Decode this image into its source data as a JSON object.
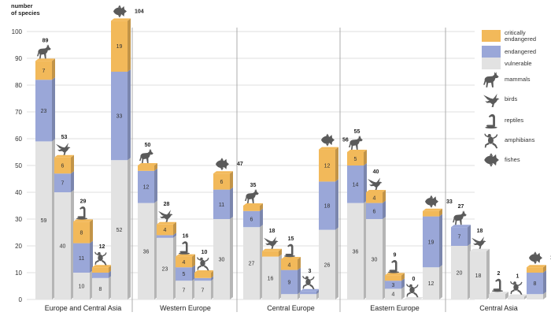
{
  "colors": {
    "critically_endangered": "#f2b95a",
    "endangered": "#9aa7d8",
    "vulnerable": "#e2e2e2",
    "icon": "#5a5a5a",
    "grid": "#d4d4d4"
  },
  "chart_data": {
    "type": "bar",
    "ylabel": "number\nof species",
    "ylim": [
      0,
      100
    ],
    "yticks": [
      0,
      10,
      20,
      30,
      40,
      50,
      60,
      70,
      80,
      90,
      100
    ],
    "stack_order": [
      "vulnerable",
      "endangered",
      "critically_endangered"
    ],
    "groups": [
      {
        "region": "Europe and Central Asia",
        "bars": [
          {
            "taxon": "mammals",
            "icon": "wolf-icon",
            "vulnerable": 59,
            "endangered": 23,
            "critically_endangered": 7,
            "total": 89
          },
          {
            "taxon": "birds",
            "icon": "bird-icon",
            "vulnerable": 40,
            "endangered": 7,
            "critically_endangered": 6,
            "total": 53
          },
          {
            "taxon": "reptiles",
            "icon": "snake-icon",
            "vulnerable": 10,
            "endangered": 11,
            "critically_endangered": 8,
            "total": 29
          },
          {
            "taxon": "amphibians",
            "icon": "frog-icon",
            "vulnerable": 8,
            "endangered": 2,
            "critically_endangered": 2,
            "total": 12
          },
          {
            "taxon": "fishes",
            "icon": "fish-icon",
            "vulnerable": 52,
            "endangered": 33,
            "critically_endangered": 19,
            "total": 104
          }
        ]
      },
      {
        "region": "Western Europe",
        "bars": [
          {
            "taxon": "mammals",
            "icon": "wolf-icon",
            "vulnerable": 36,
            "endangered": 12,
            "critically_endangered": 2,
            "total": 50
          },
          {
            "taxon": "birds",
            "icon": "bird-icon",
            "vulnerable": 23,
            "endangered": 1,
            "critically_endangered": 4,
            "total": 28
          },
          {
            "taxon": "reptiles",
            "icon": "snake-icon",
            "vulnerable": 7,
            "endangered": 5,
            "critically_endangered": 4,
            "total": 16
          },
          {
            "taxon": "amphibians",
            "icon": "frog-icon",
            "vulnerable": 7,
            "endangered": 1,
            "critically_endangered": 2,
            "total": 10
          },
          {
            "taxon": "fishes",
            "icon": "fish-icon",
            "vulnerable": 30,
            "endangered": 11,
            "critically_endangered": 6,
            "total": 47
          }
        ]
      },
      {
        "region": "Central Europe",
        "bars": [
          {
            "taxon": "mammals",
            "icon": "wolf-icon",
            "vulnerable": 27,
            "endangered": 6,
            "critically_endangered": 2,
            "total": 35
          },
          {
            "taxon": "birds",
            "icon": "bird-icon",
            "vulnerable": 16,
            "endangered": 0,
            "critically_endangered": 2,
            "total": 18
          },
          {
            "taxon": "reptiles",
            "icon": "snake-icon",
            "vulnerable": 2,
            "endangered": 9,
            "critically_endangered": 4,
            "total": 15
          },
          {
            "taxon": "amphibians",
            "icon": "frog-icon",
            "vulnerable": 2,
            "endangered": 1,
            "critically_endangered": 0,
            "total": 3
          },
          {
            "taxon": "fishes",
            "icon": "fish-icon",
            "vulnerable": 26,
            "endangered": 18,
            "critically_endangered": 12,
            "total": 56
          }
        ]
      },
      {
        "region": "Eastern Europe",
        "bars": [
          {
            "taxon": "mammals",
            "icon": "wolf-icon",
            "vulnerable": 36,
            "endangered": 14,
            "critically_endangered": 5,
            "total": 55
          },
          {
            "taxon": "birds",
            "icon": "bird-icon",
            "vulnerable": 30,
            "endangered": 6,
            "critically_endangered": 4,
            "total": 40
          },
          {
            "taxon": "reptiles",
            "icon": "snake-icon",
            "vulnerable": 4,
            "endangered": 3,
            "critically_endangered": 2,
            "total": 9
          },
          {
            "taxon": "amphibians",
            "icon": "frog-icon",
            "vulnerable": 0,
            "endangered": 0,
            "critically_endangered": 0,
            "total": 0
          },
          {
            "taxon": "fishes",
            "icon": "fish-icon",
            "vulnerable": 12,
            "endangered": 19,
            "critically_endangered": 2,
            "total": 33
          }
        ]
      },
      {
        "region": "Central Asia",
        "bars": [
          {
            "taxon": "mammals",
            "icon": "wolf-icon",
            "vulnerable": 20,
            "endangered": 7,
            "critically_endangered": 0,
            "total": 27
          },
          {
            "taxon": "birds",
            "icon": "bird-icon",
            "vulnerable": 18,
            "endangered": 0,
            "critically_endangered": 0,
            "total": 18
          },
          {
            "taxon": "reptiles",
            "icon": "snake-icon",
            "vulnerable": 2,
            "endangered": 0,
            "critically_endangered": 0,
            "total": 2
          },
          {
            "taxon": "amphibians",
            "icon": "frog-icon",
            "vulnerable": 1,
            "endangered": 0,
            "critically_endangered": 0,
            "total": 1
          },
          {
            "taxon": "fishes",
            "icon": "fish-icon",
            "vulnerable": 2,
            "endangered": 8,
            "critically_endangered": 2,
            "total": 12
          }
        ]
      }
    ],
    "legend": {
      "placement": "right",
      "status": [
        {
          "key": "critically_endangered",
          "label": "critically\nendangered"
        },
        {
          "key": "endangered",
          "label": "endangered"
        },
        {
          "key": "vulnerable",
          "label": "vulnerable"
        }
      ],
      "taxa": [
        {
          "icon": "wolf-icon",
          "label": "mammals"
        },
        {
          "icon": "bird-icon",
          "label": "birds"
        },
        {
          "icon": "snake-icon",
          "label": "reptiles"
        },
        {
          "icon": "frog-icon",
          "label": "amphibians"
        },
        {
          "icon": "fish-icon",
          "label": "fishes"
        }
      ]
    }
  }
}
